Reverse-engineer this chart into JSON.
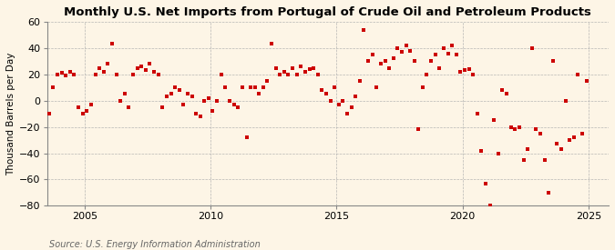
{
  "title": "Monthly U.S. Net Imports from Portugal of Crude Oil and Petroleum Products",
  "ylabel": "Thousand Barrels per Day",
  "source": "Source: U.S. Energy Information Administration",
  "background_color": "#fdf5e6",
  "plot_bg_color": "#fdf5e6",
  "marker_color": "#cc0000",
  "marker_size": 9,
  "ylim": [
    -80,
    60
  ],
  "yticks": [
    -80,
    -60,
    -40,
    -20,
    0,
    20,
    40,
    60
  ],
  "xlim_start": 2003.5,
  "xlim_end": 2025.8,
  "xticks": [
    2005,
    2010,
    2015,
    2020,
    2025
  ],
  "grid_color": "#b0b0b0",
  "title_fontsize": 9.5,
  "label_fontsize": 7.5,
  "tick_fontsize": 8,
  "source_fontsize": 7,
  "data": [
    [
      2003.58,
      -10
    ],
    [
      2003.75,
      10
    ],
    [
      2003.92,
      20
    ],
    [
      2004.08,
      21
    ],
    [
      2004.25,
      19
    ],
    [
      2004.42,
      22
    ],
    [
      2004.58,
      20
    ],
    [
      2004.75,
      -5
    ],
    [
      2004.92,
      -10
    ],
    [
      2005.08,
      -8
    ],
    [
      2005.25,
      -3
    ],
    [
      2005.42,
      20
    ],
    [
      2005.58,
      25
    ],
    [
      2005.75,
      22
    ],
    [
      2005.92,
      28
    ],
    [
      2006.08,
      43
    ],
    [
      2006.25,
      20
    ],
    [
      2006.42,
      0
    ],
    [
      2006.58,
      5
    ],
    [
      2006.75,
      -5
    ],
    [
      2006.92,
      20
    ],
    [
      2007.08,
      25
    ],
    [
      2007.25,
      26
    ],
    [
      2007.42,
      23
    ],
    [
      2007.58,
      28
    ],
    [
      2007.75,
      22
    ],
    [
      2007.92,
      20
    ],
    [
      2008.08,
      -5
    ],
    [
      2008.25,
      3
    ],
    [
      2008.42,
      5
    ],
    [
      2008.58,
      10
    ],
    [
      2008.75,
      8
    ],
    [
      2008.92,
      -3
    ],
    [
      2009.08,
      5
    ],
    [
      2009.25,
      3
    ],
    [
      2009.42,
      -10
    ],
    [
      2009.58,
      -12
    ],
    [
      2009.75,
      0
    ],
    [
      2009.92,
      2
    ],
    [
      2010.08,
      -8
    ],
    [
      2010.25,
      0
    ],
    [
      2010.42,
      20
    ],
    [
      2010.58,
      10
    ],
    [
      2010.75,
      0
    ],
    [
      2010.92,
      -3
    ],
    [
      2011.08,
      -5
    ],
    [
      2011.25,
      10
    ],
    [
      2011.42,
      -28
    ],
    [
      2011.58,
      10
    ],
    [
      2011.75,
      10
    ],
    [
      2011.92,
      5
    ],
    [
      2012.08,
      10
    ],
    [
      2012.25,
      15
    ],
    [
      2012.42,
      43
    ],
    [
      2012.58,
      25
    ],
    [
      2012.75,
      20
    ],
    [
      2012.92,
      22
    ],
    [
      2013.08,
      20
    ],
    [
      2013.25,
      25
    ],
    [
      2013.42,
      20
    ],
    [
      2013.58,
      26
    ],
    [
      2013.75,
      22
    ],
    [
      2013.92,
      24
    ],
    [
      2014.08,
      25
    ],
    [
      2014.25,
      20
    ],
    [
      2014.42,
      8
    ],
    [
      2014.58,
      5
    ],
    [
      2014.75,
      0
    ],
    [
      2014.92,
      10
    ],
    [
      2015.08,
      -3
    ],
    [
      2015.25,
      0
    ],
    [
      2015.42,
      -10
    ],
    [
      2015.58,
      -5
    ],
    [
      2015.75,
      3
    ],
    [
      2015.92,
      15
    ],
    [
      2016.08,
      54
    ],
    [
      2016.25,
      30
    ],
    [
      2016.42,
      35
    ],
    [
      2016.58,
      10
    ],
    [
      2016.75,
      28
    ],
    [
      2016.92,
      30
    ],
    [
      2017.08,
      25
    ],
    [
      2017.25,
      32
    ],
    [
      2017.42,
      40
    ],
    [
      2017.58,
      37
    ],
    [
      2017.75,
      42
    ],
    [
      2017.92,
      38
    ],
    [
      2018.08,
      30
    ],
    [
      2018.25,
      -22
    ],
    [
      2018.42,
      10
    ],
    [
      2018.58,
      20
    ],
    [
      2018.75,
      30
    ],
    [
      2018.92,
      35
    ],
    [
      2019.08,
      25
    ],
    [
      2019.25,
      40
    ],
    [
      2019.42,
      36
    ],
    [
      2019.58,
      42
    ],
    [
      2019.75,
      35
    ],
    [
      2019.92,
      22
    ],
    [
      2020.08,
      23
    ],
    [
      2020.25,
      24
    ],
    [
      2020.42,
      20
    ],
    [
      2020.58,
      -10
    ],
    [
      2020.75,
      -38
    ],
    [
      2020.92,
      -63
    ],
    [
      2021.08,
      -80
    ],
    [
      2021.25,
      -15
    ],
    [
      2021.42,
      -40
    ],
    [
      2021.58,
      8
    ],
    [
      2021.75,
      5
    ],
    [
      2021.92,
      -20
    ],
    [
      2022.08,
      -22
    ],
    [
      2022.25,
      -20
    ],
    [
      2022.42,
      -45
    ],
    [
      2022.58,
      -37
    ],
    [
      2022.75,
      40
    ],
    [
      2022.92,
      -22
    ],
    [
      2023.08,
      -25
    ],
    [
      2023.25,
      -45
    ],
    [
      2023.42,
      -70
    ],
    [
      2023.58,
      30
    ],
    [
      2023.75,
      -33
    ],
    [
      2023.92,
      -37
    ],
    [
      2024.08,
      0
    ],
    [
      2024.25,
      -30
    ],
    [
      2024.42,
      -28
    ],
    [
      2024.58,
      20
    ],
    [
      2024.75,
      -25
    ],
    [
      2024.92,
      15
    ]
  ]
}
